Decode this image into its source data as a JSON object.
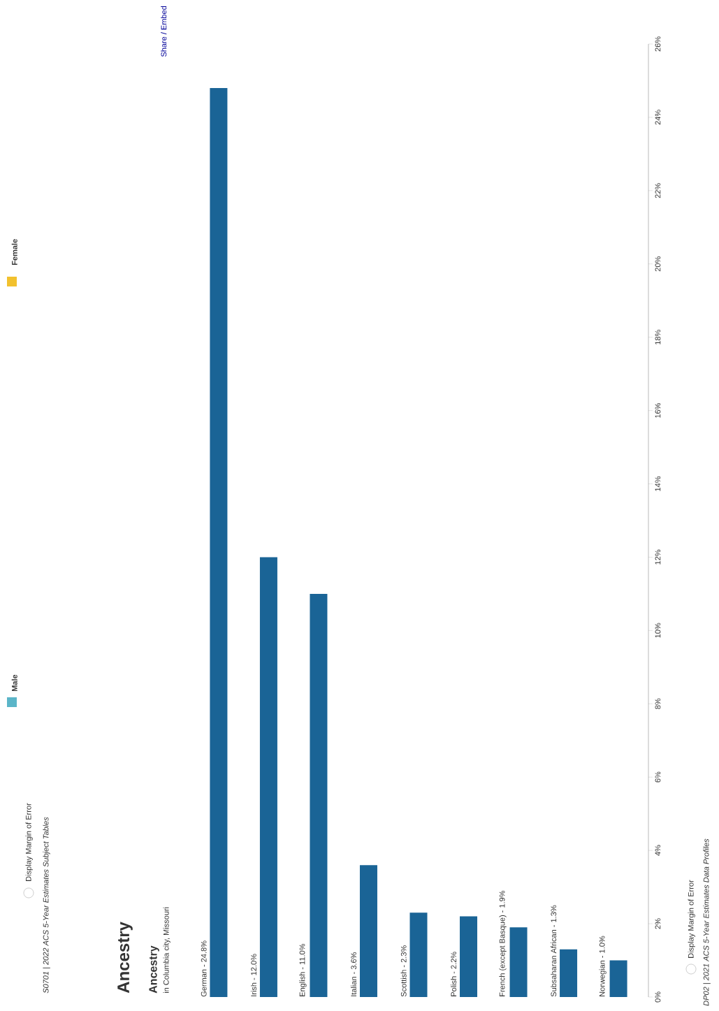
{
  "chart_data": {
    "type": "bar",
    "title": "Ancestry",
    "subtitle": "Ancestry",
    "categories": [
      "German - 24.8%",
      "Irish - 12.0%",
      "English - 11.0%",
      "Italian - 3.6%",
      "Scottish - 2.3%",
      "Polish - 2.2%",
      "French (except Basque) - 1.9%",
      "Subsaharan African - 1.3%",
      "Norwegian - 1.0%"
    ],
    "values": [
      24.8,
      12.0,
      11.0,
      3.6,
      2.3,
      2.2,
      1.9,
      1.3,
      1.0
    ],
    "color": "#1a6496",
    "ylim": [
      0,
      26
    ],
    "yticks": [
      {
        "value": 0,
        "label": "0%"
      },
      {
        "value": 2,
        "label": "2%"
      },
      {
        "value": 4,
        "label": "4%"
      },
      {
        "value": 6,
        "label": "6%"
      },
      {
        "value": 8,
        "label": "8%"
      },
      {
        "value": 10,
        "label": "10%"
      },
      {
        "value": 12,
        "label": "12%"
      },
      {
        "value": 14,
        "label": "14%"
      },
      {
        "value": 16,
        "label": "16%"
      },
      {
        "value": 18,
        "label": "18%"
      },
      {
        "value": 20,
        "label": "20%"
      },
      {
        "value": 22,
        "label": "22%"
      },
      {
        "value": 24,
        "label": "24%"
      },
      {
        "value": 26,
        "label": "26%"
      }
    ],
    "grid": false,
    "annotations": [
      "in Columbia city, Missouri",
      "Share / Embed",
      "Male",
      "Female",
      "Display Margin of Error",
      "S0701 | 2022 ACS 5-Year Estimates Subject Tables",
      "Display Margin of Error",
      "DP02 | 2021 ACS 5-Year Estimates Data Profiles"
    ]
  }
}
